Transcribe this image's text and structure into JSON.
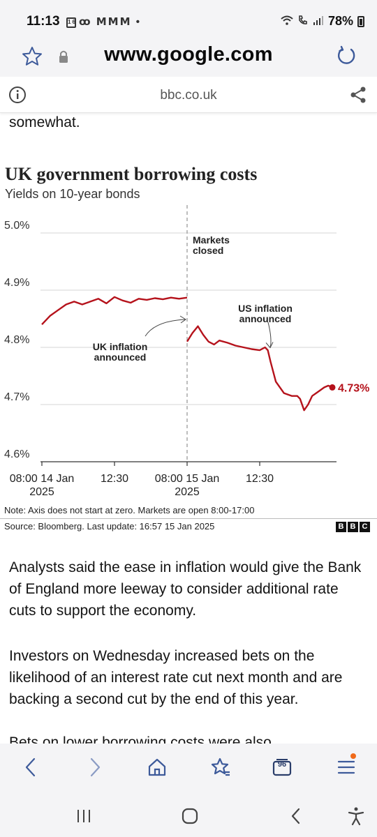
{
  "status_bar": {
    "time": "11:13",
    "calendar_day": "16",
    "left_icons": "ꝏ ⅯⅯⅯ •",
    "battery_percent": "78%"
  },
  "url_bar": {
    "url": "www.google.com"
  },
  "info_bar": {
    "domain": "bbc.co.uk"
  },
  "article": {
    "para_top": "somewhat.",
    "para_1": "Analysts said the ease in inflation would give the Bank of England more leeway to consider additional rate cuts to support the economy.",
    "para_2": "Investors on Wednesday increased bets on the likelihood of an interest rate cut next month and are backing a second cut by the end of this year.",
    "para_3": "Bets on lower borrowing costs were also"
  },
  "chart": {
    "title": "UK government borrowing costs",
    "subtitle": "Yields on 10-year bonds",
    "note": "Note: Axis does not start at zero. Markets are open 8:00-17:00",
    "source": "Source: Bloomberg. Last update: 16:57 15 Jan 2025",
    "logo": [
      "B",
      "B",
      "C"
    ],
    "line_color": "#b5121b"
  },
  "chart_data": {
    "type": "line",
    "title": "UK government borrowing costs",
    "subtitle": "Yields on 10-year bonds",
    "y_ticks": [
      "4.6%",
      "4.7%",
      "4.8%",
      "4.9%",
      "5.0%"
    ],
    "ylim": [
      4.6,
      5.0
    ],
    "x_ticks": [
      {
        "label": [
          "08:00 14 Jan",
          "2025"
        ]
      },
      {
        "label": [
          "12:30"
        ]
      },
      {
        "label": [
          "08:00 15 Jan",
          "2025"
        ]
      },
      {
        "label": [
          "12:30"
        ]
      }
    ],
    "annotations": {
      "markets_closed": [
        "Markets",
        "closed"
      ],
      "uk_inflation": [
        "UK inflation",
        "announced"
      ],
      "us_inflation": [
        "US inflation",
        "announced"
      ]
    },
    "last_value_label": "4.73%",
    "series": [
      {
        "day": "14 Jan",
        "x": [
          8.0,
          8.5,
          9.0,
          9.5,
          10.0,
          10.5,
          11.0,
          11.5,
          12.0,
          12.5,
          13.0,
          13.5,
          14.0,
          14.5,
          15.0,
          15.5,
          16.0,
          16.5,
          17.0
        ],
        "values": [
          4.84,
          4.855,
          4.865,
          4.875,
          4.88,
          4.875,
          4.88,
          4.885,
          4.877,
          4.888,
          4.882,
          4.878,
          4.885,
          4.883,
          4.886,
          4.884,
          4.887,
          4.885,
          4.887
        ]
      },
      {
        "day": "15 Jan",
        "x": [
          8.0,
          8.33,
          8.67,
          9.0,
          9.33,
          9.67,
          10.0,
          10.5,
          11.0,
          11.5,
          12.0,
          12.5,
          12.83,
          13.0,
          13.17,
          13.5,
          14.0,
          14.5,
          14.83,
          15.0,
          15.25,
          15.5,
          15.75,
          16.0,
          16.25,
          16.5,
          16.75,
          17.0
        ],
        "values": [
          4.81,
          4.825,
          4.837,
          4.822,
          4.81,
          4.805,
          4.812,
          4.808,
          4.803,
          4.8,
          4.797,
          4.795,
          4.8,
          4.795,
          4.775,
          4.74,
          4.72,
          4.715,
          4.715,
          4.71,
          4.69,
          4.7,
          4.715,
          4.72,
          4.725,
          4.73,
          4.733,
          4.73
        ]
      }
    ]
  },
  "toolbar": {
    "tabs_count": "96"
  }
}
